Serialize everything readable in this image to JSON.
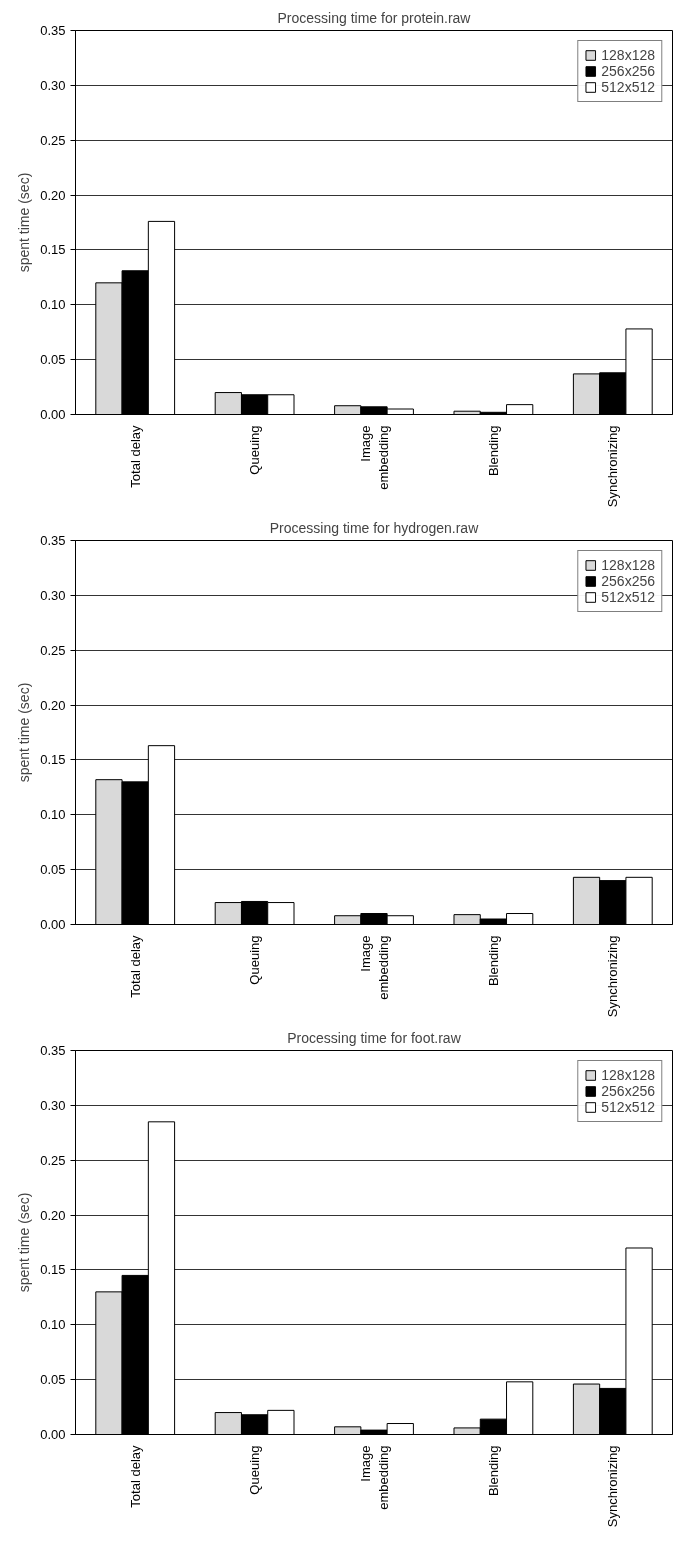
{
  "chart_data": [
    {
      "type": "bar",
      "title": "Processing time for protein.raw",
      "ylabel": "spent time (sec)",
      "categories": [
        "Total delay",
        "Queuing",
        "Image embedding",
        "Blending",
        "Synchronizing"
      ],
      "ylim": [
        0,
        0.35
      ],
      "yticks": [
        {
          "value": 0,
          "label": "0.00"
        },
        {
          "value": 0.05,
          "label": "0.05"
        },
        {
          "value": 0.1,
          "label": "0.10"
        },
        {
          "value": 0.15,
          "label": "0.15"
        },
        {
          "value": 0.2,
          "label": "0.20"
        },
        {
          "value": 0.25,
          "label": "0.25"
        },
        {
          "value": 0.3,
          "label": "0.30"
        },
        {
          "value": 0.35,
          "label": "0.35"
        }
      ],
      "grid": "y",
      "legend": "top right",
      "series": [
        {
          "name": "128x128",
          "color": "#d9d9d9",
          "values": [
            0.12,
            0.02,
            0.008,
            0.003,
            0.037
          ]
        },
        {
          "name": "256x256",
          "color": "#000000",
          "values": [
            0.131,
            0.018,
            0.007,
            0.002,
            0.038
          ]
        },
        {
          "name": "512x512",
          "color": "#ffffff",
          "values": [
            0.176,
            0.018,
            0.005,
            0.009,
            0.078
          ]
        }
      ]
    },
    {
      "type": "bar",
      "title": "Processing time for hydrogen.raw",
      "ylabel": "spent time (sec)",
      "categories": [
        "Total delay",
        "Queuing",
        "Image embedding",
        "Blending",
        "Synchronizing"
      ],
      "ylim": [
        0,
        0.35
      ],
      "yticks": [
        {
          "value": 0,
          "label": "0.00"
        },
        {
          "value": 0.05,
          "label": "0.05"
        },
        {
          "value": 0.1,
          "label": "0.10"
        },
        {
          "value": 0.15,
          "label": "0.15"
        },
        {
          "value": 0.2,
          "label": "0.20"
        },
        {
          "value": 0.25,
          "label": "0.25"
        },
        {
          "value": 0.3,
          "label": "0.30"
        },
        {
          "value": 0.35,
          "label": "0.35"
        }
      ],
      "grid": "y",
      "legend": "top right",
      "series": [
        {
          "name": "128x128",
          "color": "#d9d9d9",
          "values": [
            0.132,
            0.02,
            0.008,
            0.009,
            0.043
          ]
        },
        {
          "name": "256x256",
          "color": "#000000",
          "values": [
            0.13,
            0.021,
            0.01,
            0.005,
            0.04
          ]
        },
        {
          "name": "512x512",
          "color": "#ffffff",
          "values": [
            0.163,
            0.02,
            0.008,
            0.01,
            0.043
          ]
        }
      ]
    },
    {
      "type": "bar",
      "title": "Processing time for foot.raw",
      "ylabel": "spent time (sec)",
      "categories": [
        "Total delay",
        "Queuing",
        "Image embedding",
        "Blending",
        "Synchronizing"
      ],
      "ylim": [
        0,
        0.35
      ],
      "yticks": [
        {
          "value": 0,
          "label": "0.00"
        },
        {
          "value": 0.05,
          "label": "0.05"
        },
        {
          "value": 0.1,
          "label": "0.10"
        },
        {
          "value": 0.15,
          "label": "0.15"
        },
        {
          "value": 0.2,
          "label": "0.20"
        },
        {
          "value": 0.25,
          "label": "0.25"
        },
        {
          "value": 0.3,
          "label": "0.30"
        },
        {
          "value": 0.35,
          "label": "0.35"
        }
      ],
      "grid": "y",
      "legend": "top right",
      "series": [
        {
          "name": "128x128",
          "color": "#d9d9d9",
          "values": [
            0.13,
            0.02,
            0.007,
            0.006,
            0.046
          ]
        },
        {
          "name": "256x256",
          "color": "#000000",
          "values": [
            0.145,
            0.018,
            0.004,
            0.014,
            0.042
          ]
        },
        {
          "name": "512x512",
          "color": "#ffffff",
          "values": [
            0.285,
            0.022,
            0.01,
            0.048,
            0.17
          ]
        }
      ]
    }
  ]
}
